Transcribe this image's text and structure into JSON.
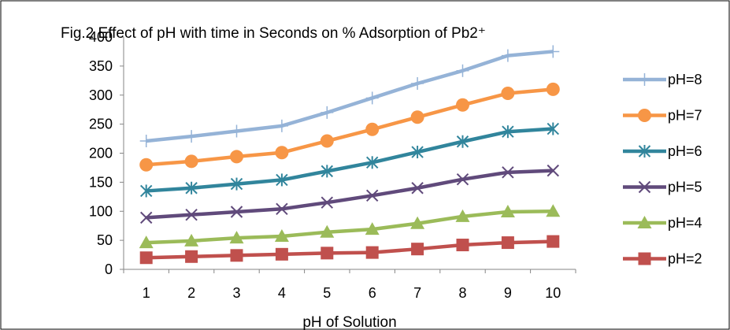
{
  "chart_data": {
    "type": "line",
    "title": "Fig.2 Effect of pH  with time in Seconds on % Adsorption  of Pb2⁺",
    "xlabel": "pH of Solution",
    "ylabel": "",
    "categories": [
      "1",
      "2",
      "3",
      "4",
      "5",
      "6",
      "7",
      "8",
      "9",
      "10"
    ],
    "ylim": [
      0,
      400
    ],
    "yticks": [
      "0",
      "50",
      "100",
      "150",
      "200",
      "250",
      "300",
      "350",
      "400"
    ],
    "grid": false,
    "legend_position": "right",
    "series": [
      {
        "name": "pH=8",
        "color": "#95B3D7",
        "marker": "plus",
        "values": [
          221,
          229,
          238,
          247,
          270,
          295,
          320,
          342,
          368,
          375
        ]
      },
      {
        "name": "pH=7",
        "color": "#F79646",
        "marker": "circle",
        "values": [
          180,
          186,
          194,
          201,
          221,
          241,
          262,
          283,
          303,
          310
        ]
      },
      {
        "name": "pH=6",
        "color": "#31859C",
        "marker": "asterisk",
        "values": [
          135,
          140,
          147,
          154,
          169,
          184,
          202,
          220,
          237,
          242
        ]
      },
      {
        "name": "pH=5",
        "color": "#604A7B",
        "marker": "x",
        "values": [
          89,
          94,
          99,
          104,
          115,
          127,
          140,
          155,
          167,
          170
        ]
      },
      {
        "name": "pH=4",
        "color": "#9BBB59",
        "marker": "triangle",
        "values": [
          46,
          49,
          54,
          57,
          64,
          69,
          79,
          91,
          99,
          100
        ]
      },
      {
        "name": "pH=2",
        "color": "#C0504D",
        "marker": "square",
        "values": [
          20,
          22,
          24,
          26,
          28,
          29,
          35,
          42,
          46,
          48
        ]
      }
    ],
    "legend_labels": [
      "pH=8",
      "pH=7",
      "pH=6",
      "pH=5",
      "pH=4",
      " pH=2"
    ]
  }
}
